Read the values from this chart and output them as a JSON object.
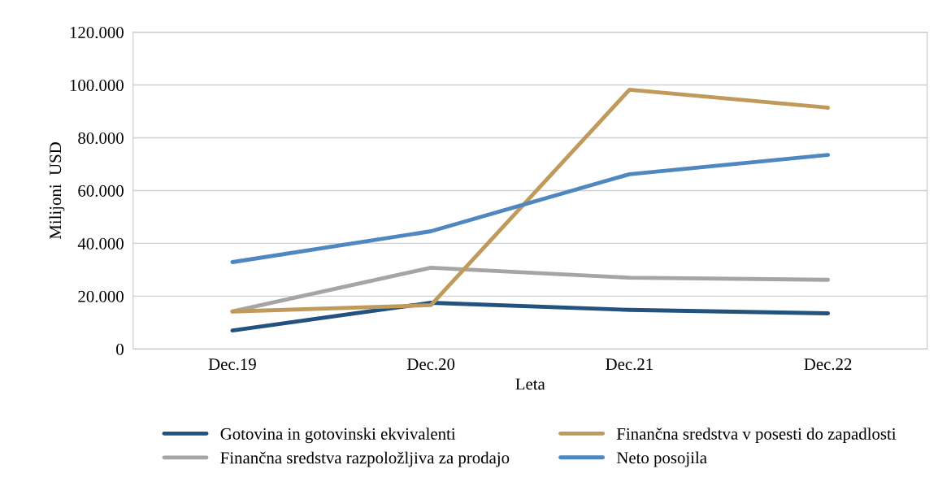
{
  "chart_data": {
    "type": "line",
    "xlabel": "Leta",
    "ylabel": "Milijoni  USD",
    "categories": [
      "Dec.19",
      "Dec.20",
      "Dec.21",
      "Dec.22"
    ],
    "series": [
      {
        "name": "Gotovina in gotovinski ekvivalenti",
        "color": "#24527f",
        "values": [
          7000,
          17500,
          14800,
          13500
        ]
      },
      {
        "name": "Finančna sredstva razpoložljiva za prodajo",
        "color": "#a5a5a5",
        "values": [
          14200,
          30800,
          27000,
          26200
        ]
      },
      {
        "name": "Finančna sredstva v posesti do zapadlosti",
        "color": "#c09a5b",
        "values": [
          14200,
          16600,
          98200,
          91400
        ]
      },
      {
        "name": "Neto posojila",
        "color": "#4f87c0",
        "values": [
          32900,
          44600,
          66200,
          73500
        ]
      }
    ],
    "ylim": [
      0,
      120000
    ],
    "yticks": [
      0,
      {
        "value": 20000,
        "label": "20.000"
      },
      {
        "value": 40000,
        "label": "40.000"
      },
      {
        "value": 60000,
        "label": "60.000"
      },
      {
        "value": 80000,
        "label": "80.000"
      },
      {
        "value": 100000,
        "label": "100.000"
      },
      {
        "value": 120000,
        "label": "120.000"
      }
    ],
    "grid": "y",
    "legend": "bottom",
    "marker": "none",
    "line_style": "solid"
  }
}
